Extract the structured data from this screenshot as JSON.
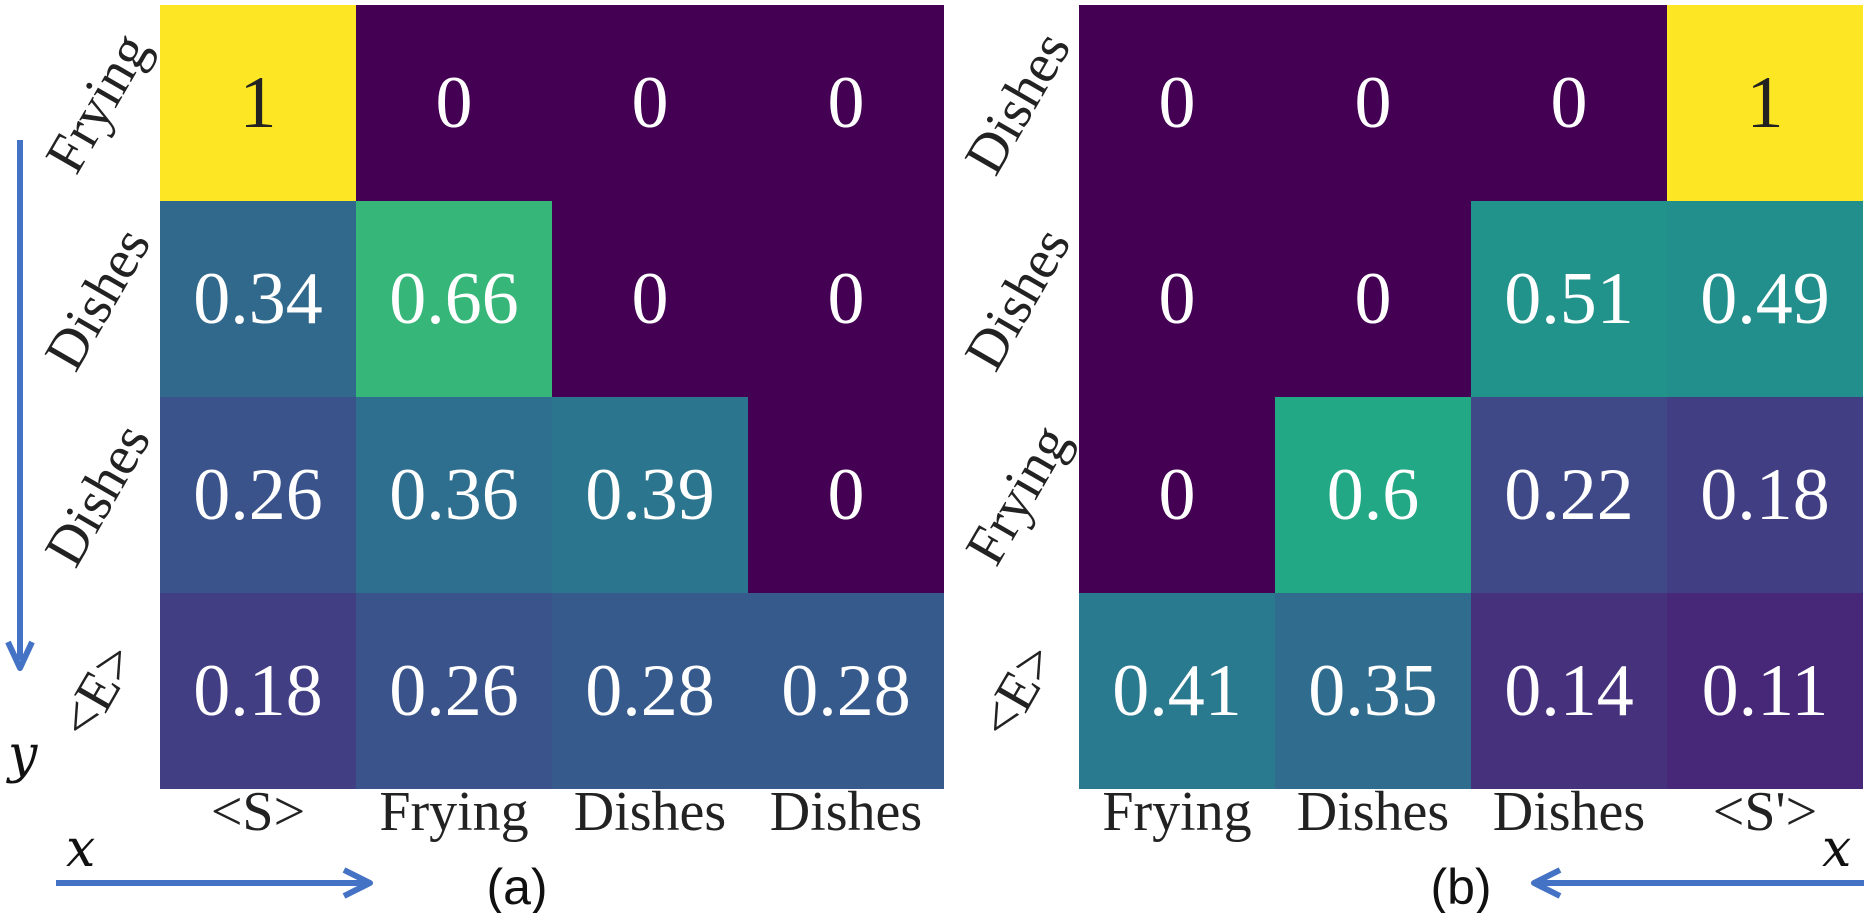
{
  "chart_data": [
    {
      "type": "heatmap",
      "panel_label": "(a)",
      "x_tick_labels": [
        "<S>",
        "Frying",
        "Dishes",
        "Dishes"
      ],
      "y_tick_labels": [
        "Frying",
        "Dishes",
        "Dishes",
        "<E>"
      ],
      "values": [
        [
          1,
          0,
          0,
          0
        ],
        [
          0.34,
          0.66,
          0,
          0
        ],
        [
          0.26,
          0.36,
          0.39,
          0
        ],
        [
          0.18,
          0.26,
          0.28,
          0.28
        ]
      ],
      "cell_labels": [
        [
          "1",
          "0",
          "0",
          "0"
        ],
        [
          "0.34",
          "0.66",
          "0",
          "0"
        ],
        [
          "0.26",
          "0.36",
          "0.39",
          "0"
        ],
        [
          "0.18",
          "0.26",
          "0.28",
          "0.28"
        ]
      ],
      "xlabel": "x",
      "ylabel": "y",
      "x_arrow_direction": "right",
      "colormap": "viridis",
      "vmin": 0,
      "vmax": 1
    },
    {
      "type": "heatmap",
      "panel_label": "(b)",
      "x_tick_labels": [
        "Frying",
        "Dishes",
        "Dishes",
        "<S'>"
      ],
      "y_tick_labels": [
        "Dishes",
        "Dishes",
        "Frying",
        "<E>"
      ],
      "values": [
        [
          0,
          0,
          0,
          1
        ],
        [
          0,
          0,
          0.51,
          0.49
        ],
        [
          0,
          0.6,
          0.22,
          0.18
        ],
        [
          0.41,
          0.35,
          0.14,
          0.11
        ]
      ],
      "cell_labels": [
        [
          "0",
          "0",
          "0",
          "1"
        ],
        [
          "0",
          "0",
          "0.51",
          "0.49"
        ],
        [
          "0",
          "0.6",
          "0.22",
          "0.18"
        ],
        [
          "0.41",
          "0.35",
          "0.14",
          "0.11"
        ]
      ],
      "xlabel": "x",
      "x_arrow_direction": "left",
      "colormap": "viridis",
      "vmin": 0,
      "vmax": 1
    }
  ],
  "colors": {
    "arrow": "#4472c4",
    "cell_text_light": "#ffffff",
    "cell_text_dark": "#222222"
  }
}
